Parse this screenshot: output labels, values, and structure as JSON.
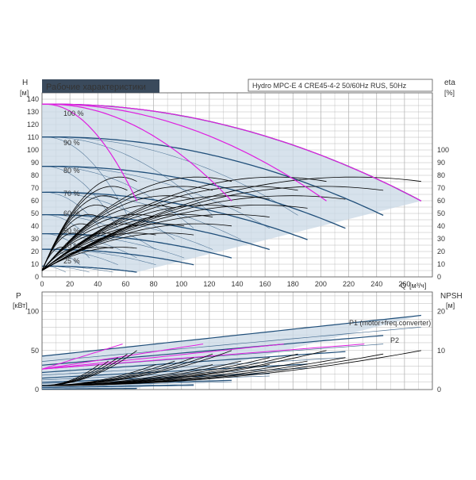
{
  "title": "Рабочие характеристики",
  "subtitle": "Hydro MPC-E 4 CRE45-4-2 50/60Hz RUS, 50Hz",
  "colors": {
    "title_bg": "#3a4a5c",
    "grid": "#b8b8b8",
    "envelope_fill": "#c9d8e6",
    "speed_curve": "#1f4e79",
    "magenta": "#e020e0",
    "black": "#000000"
  },
  "chart_data": [
    {
      "type": "line",
      "name": "head",
      "ylabel_left": "H",
      "yunit_left": "[м]",
      "ylabel_right": "eta",
      "yunit_right": "[%]",
      "xlabel": "Q",
      "xunit": "[м³/ч]",
      "xlim": [
        0,
        280
      ],
      "ylim": [
        0,
        145
      ],
      "x_ticks": [
        "0",
        "20",
        "40",
        "60",
        "80",
        "100",
        "120",
        "140",
        "160",
        "180",
        "200",
        "220",
        "240",
        "260"
      ],
      "y_ticks": [
        "0",
        "10",
        "20",
        "30",
        "40",
        "50",
        "60",
        "70",
        "80",
        "90",
        "100",
        "110",
        "120",
        "130",
        "140"
      ],
      "eta_ticks": [
        "0",
        "10",
        "20",
        "30",
        "40",
        "50",
        "60",
        "70",
        "80",
        "90",
        "100"
      ],
      "speed_labels": [
        "100 %",
        "90 %",
        "80 %",
        "70 %",
        "60 %",
        "50 %",
        "40 %",
        "25 %"
      ],
      "speed_fractions": [
        1.0,
        0.9,
        0.8,
        0.7,
        0.6,
        0.5,
        0.4,
        0.25
      ],
      "pump_count": 4,
      "single_pump_qmax": 68,
      "h_shutoff": 136,
      "envelope_qmax": 272,
      "grid": true
    },
    {
      "type": "line",
      "name": "power",
      "ylabel_left": "P",
      "yunit_left": "[кВт]",
      "ylabel_right": "NPSH",
      "yunit_right": "[м]",
      "xlim": [
        0,
        280
      ],
      "ylim": [
        0,
        125
      ],
      "y_ticks": [
        "0",
        "50",
        "100"
      ],
      "npsh_ticks": [
        "0",
        "10",
        "20"
      ],
      "series_labels": [
        "P1 (motor+freq.converter)",
        "P2"
      ],
      "p1_at_full": 95,
      "p2_at_full": 80,
      "grid": true
    }
  ]
}
